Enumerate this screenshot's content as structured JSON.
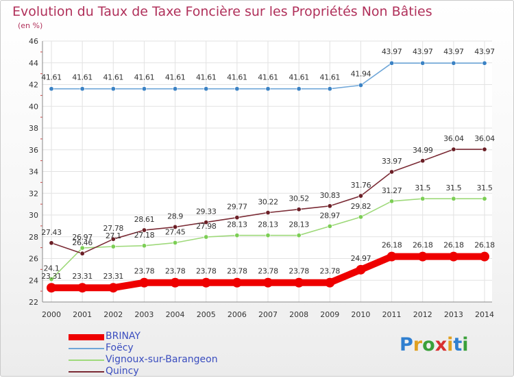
{
  "title": "Evolution du Taux de Taxe Foncière sur les Propriétés Non Bâties",
  "unit_label": "(en %)",
  "brand": {
    "text": "Proxiti",
    "letters": [
      "P",
      "r",
      "o",
      "x",
      "i",
      "t",
      "i"
    ],
    "colors": [
      "#2f7fd0",
      "#e0a020",
      "#3aa03a",
      "#d83030",
      "#e0a020",
      "#2f7fd0",
      "#3aa03a"
    ]
  },
  "chart_data": {
    "type": "line",
    "title": "Evolution du Taux de Taxe Foncière sur les Propriétés Non Bâties",
    "ylabel": "(en %)",
    "xlabel": "",
    "x": [
      "2000",
      "2001",
      "2002",
      "2003",
      "2004",
      "2005",
      "2006",
      "2007",
      "2008",
      "2009",
      "2010",
      "2011",
      "2012",
      "2013",
      "2014"
    ],
    "ylim": [
      22,
      46
    ],
    "yticks": [
      "22",
      "24",
      "26",
      "28",
      "30",
      "32",
      "34",
      "36",
      "38",
      "40",
      "42",
      "44",
      "46"
    ],
    "grid": true,
    "legend_position": "bottom-left",
    "series": [
      {
        "name": "BRINAY",
        "color": "#ee0000",
        "emphasis": "thick",
        "values": [
          23.31,
          23.31,
          23.31,
          23.78,
          23.78,
          23.78,
          23.78,
          23.78,
          23.78,
          23.78,
          24.97,
          26.18,
          26.18,
          26.18,
          26.18
        ],
        "labels": [
          "23.31",
          "23.31",
          "23.31",
          "23.78",
          "23.78",
          "23.78",
          "23.78",
          "23.78",
          "23.78",
          "23.78",
          "24.97",
          "26.18",
          "26.18",
          "26.18",
          "26.18"
        ]
      },
      {
        "name": "Foëcy",
        "color": "#6ea6d8",
        "marker": "#3b82c4",
        "values": [
          41.61,
          41.61,
          41.61,
          41.61,
          41.61,
          41.61,
          41.61,
          41.61,
          41.61,
          41.61,
          41.94,
          43.97,
          43.97,
          43.97,
          43.97
        ],
        "labels": [
          "41.61",
          "41.61",
          "41.61",
          "41.61",
          "41.61",
          "41.61",
          "41.61",
          "41.61",
          "41.61",
          "41.61",
          "41.94",
          "43.97",
          "43.97",
          "43.97",
          "43.97"
        ]
      },
      {
        "name": "Vignoux-sur-Barangeon",
        "color": "#9ed97a",
        "marker": "#7cce55",
        "values": [
          24.1,
          26.97,
          27.1,
          27.18,
          27.45,
          27.98,
          28.13,
          28.13,
          28.13,
          28.97,
          29.82,
          31.27,
          31.5,
          31.5,
          31.5
        ],
        "labels": [
          "24.1",
          "26.97",
          "27.1",
          "27.18",
          "27.45",
          "27.98",
          "28.13",
          "28.13",
          "28.13",
          "28.97",
          "29.82",
          "31.27",
          "31.5",
          "31.5",
          "31.5"
        ]
      },
      {
        "name": "Quincy",
        "color": "#7a2a34",
        "marker": "#6b1f26",
        "values": [
          27.43,
          26.46,
          27.78,
          28.61,
          28.9,
          29.33,
          29.77,
          30.22,
          30.52,
          30.83,
          31.76,
          33.97,
          34.99,
          36.04,
          36.04
        ],
        "labels": [
          "27.43",
          "26.46",
          "27.78",
          "28.61",
          "28.9",
          "29.33",
          "29.77",
          "30.22",
          "30.52",
          "30.83",
          "31.76",
          "33.97",
          "34.99",
          "36.04",
          "36.04"
        ]
      }
    ]
  }
}
